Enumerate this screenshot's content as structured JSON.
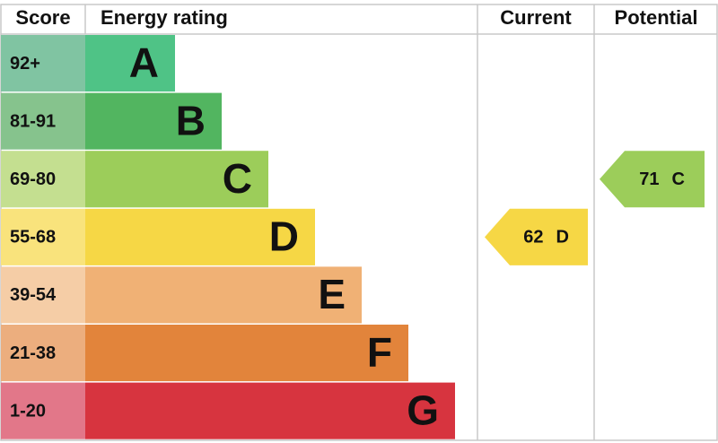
{
  "header": {
    "score": "Score",
    "rating": "Energy rating",
    "current": "Current",
    "potential": "Potential"
  },
  "bands": [
    {
      "score": "92+",
      "letter": "A",
      "color": "#4fc386",
      "score_color": "#80c4a2"
    },
    {
      "score": "81-91",
      "letter": "B",
      "color": "#52b560",
      "score_color": "#86c38d"
    },
    {
      "score": "69-80",
      "letter": "C",
      "color": "#9ccd5a",
      "score_color": "#c4df90"
    },
    {
      "score": "55-68",
      "letter": "D",
      "color": "#f6d745",
      "score_color": "#f9e37c"
    },
    {
      "score": "39-54",
      "letter": "E",
      "color": "#f0b175",
      "score_color": "#f5cda6"
    },
    {
      "score": "21-38",
      "letter": "F",
      "color": "#e2843b",
      "score_color": "#ecae7e"
    },
    {
      "score": "1-20",
      "letter": "G",
      "color": "#d7343f",
      "score_color": "#e27789"
    }
  ],
  "current": {
    "score": 62,
    "rating": "D"
  },
  "potential": {
    "score": 71,
    "rating": "C"
  }
}
